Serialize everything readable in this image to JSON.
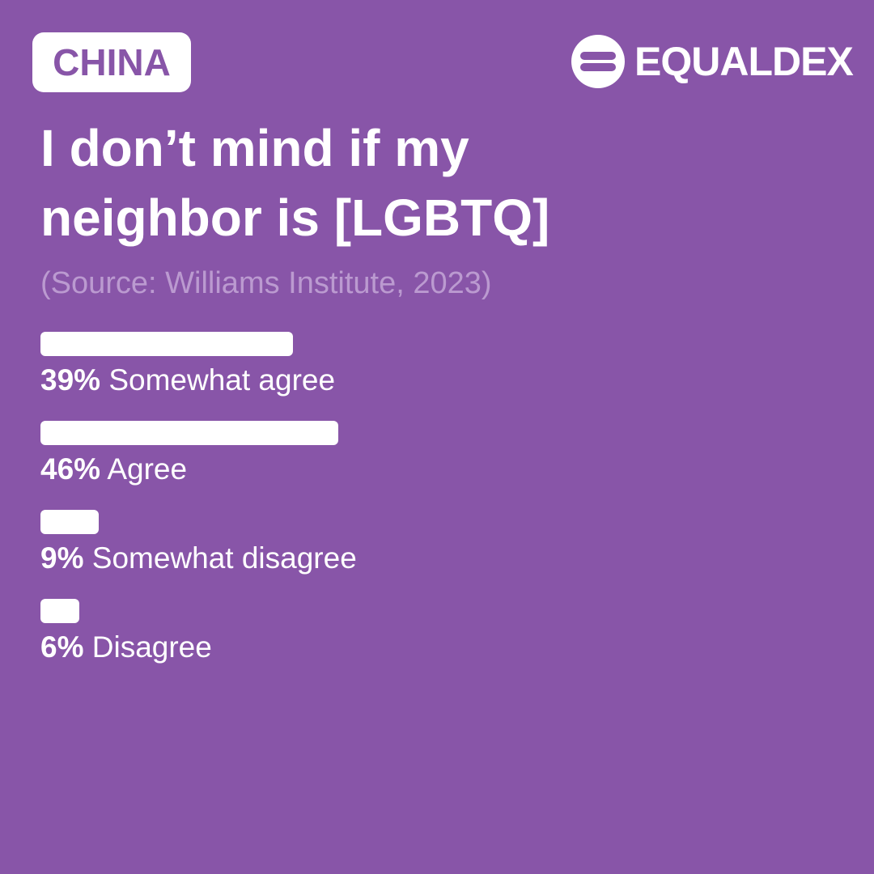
{
  "chart_data": {
    "type": "bar",
    "orientation": "horizontal",
    "badge": "CHINA",
    "brand": "EQUALDEX",
    "title": "I don’t mind if my neighbor is [LGBTQ]",
    "subtitle": "(Source: Williams Institute, 2023)",
    "categories": [
      "Somewhat agree",
      "Agree",
      "Somewhat disagree",
      "Disagree"
    ],
    "values": [
      39,
      46,
      9,
      6
    ],
    "value_labels": [
      "39%",
      "46%",
      "9%",
      "6%"
    ],
    "color": "#ffffff",
    "background": "#8855a8"
  }
}
